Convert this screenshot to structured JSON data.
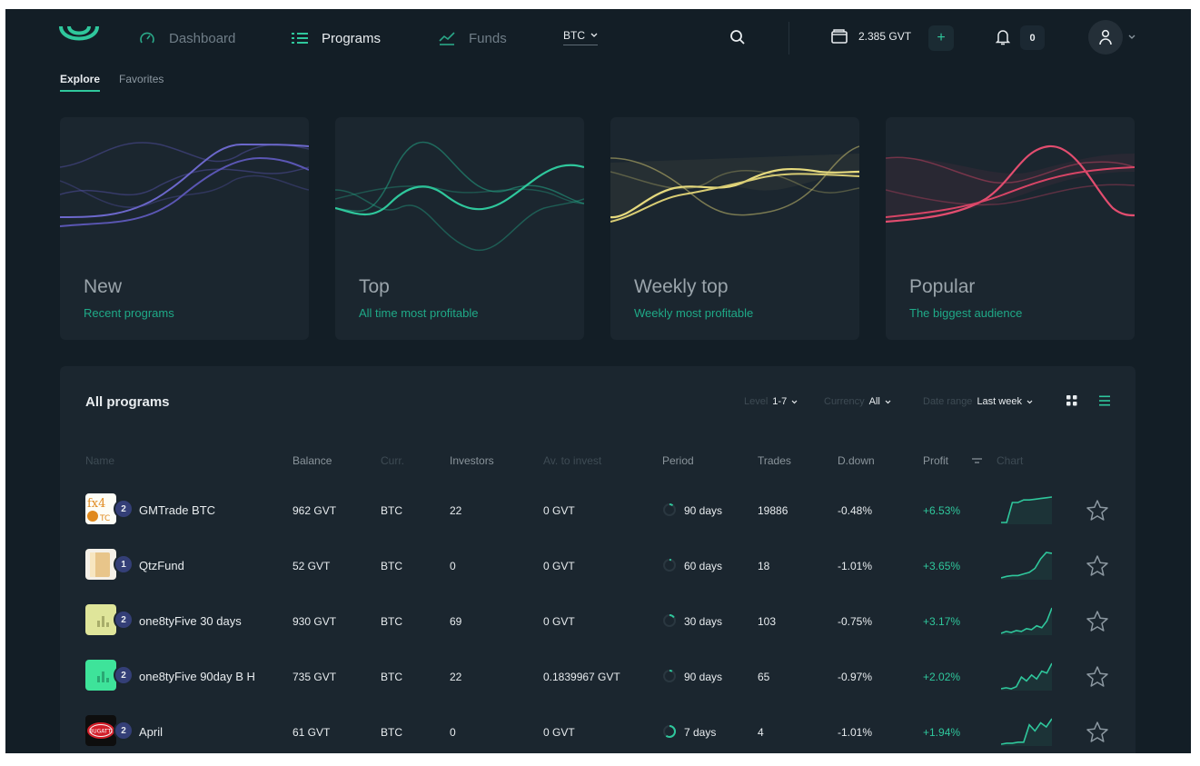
{
  "header": {
    "nav": [
      {
        "label": "Dashboard",
        "icon": "gauge-icon"
      },
      {
        "label": "Programs",
        "icon": "list-icon"
      },
      {
        "label": "Funds",
        "icon": "chart-line-icon"
      }
    ],
    "currency_select": "BTC",
    "wallet_balance": "2.385 GVT",
    "add_label": "+",
    "notifications_count": "0"
  },
  "tabs": [
    "Explore",
    "Favorites"
  ],
  "cards": [
    {
      "title": "New",
      "subtitle": "Recent programs",
      "color": "#5a56b3"
    },
    {
      "title": "Top",
      "subtitle": "All time most profitable",
      "color": "#24b08d"
    },
    {
      "title": "Weekly top",
      "subtitle": "Weekly most profitable",
      "color": "#d8cc74"
    },
    {
      "title": "Popular",
      "subtitle": "The biggest audience",
      "color": "#d84566"
    }
  ],
  "programs": {
    "title": "All programs",
    "filters": [
      {
        "label": "Level",
        "value": "1-7"
      },
      {
        "label": "Currency",
        "value": "All"
      },
      {
        "label": "Date range",
        "value": "Last week"
      }
    ],
    "columns": [
      "Name",
      "Balance",
      "Curr.",
      "Investors",
      "Av. to invest",
      "Period",
      "Trades",
      "D.down",
      "Profit",
      "Chart"
    ],
    "rows": [
      {
        "name": "GMTrade BTC",
        "level": "2",
        "balance": "962 GVT",
        "currency": "BTC",
        "investors": "22",
        "available": "0 GVT",
        "period": "90 days",
        "trades": "19886",
        "drawdown": "-0.48%",
        "profit": "+6.53%",
        "period_progress": 0.1,
        "spark": [
          0,
          0,
          55,
          55,
          62,
          62,
          64,
          66,
          68,
          70
        ]
      },
      {
        "name": "QtzFund",
        "level": "1",
        "balance": "52 GVT",
        "currency": "BTC",
        "investors": "0",
        "available": "0 GVT",
        "period": "60 days",
        "trades": "18",
        "drawdown": "-1.01%",
        "profit": "+3.65%",
        "period_progress": 0.05,
        "spark": [
          2,
          4,
          5,
          5,
          7,
          9,
          14,
          26,
          34,
          33
        ]
      },
      {
        "name": "one8tyFive 30 days",
        "level": "2",
        "balance": "930 GVT",
        "currency": "BTC",
        "investors": "69",
        "available": "0 GVT",
        "period": "30 days",
        "trades": "103",
        "drawdown": "-0.75%",
        "profit": "+3.17%",
        "period_progress": 0.15,
        "spark": [
          3,
          5,
          4,
          6,
          5,
          8,
          7,
          11,
          9,
          16,
          30
        ]
      },
      {
        "name": "one8tyFive 90day B H",
        "level": "2",
        "balance": "735 GVT",
        "currency": "BTC",
        "investors": "22",
        "available": "0.1839967 GVT",
        "period": "90 days",
        "trades": "65",
        "drawdown": "-0.97%",
        "profit": "+2.02%",
        "period_progress": 0.08,
        "spark": [
          2,
          3,
          2,
          4,
          14,
          10,
          16,
          12,
          20,
          18,
          28
        ]
      },
      {
        "name": "April",
        "level": "2",
        "balance": "61 GVT",
        "currency": "BTC",
        "investors": "0",
        "available": "0 GVT",
        "period": "7 days",
        "trades": "4",
        "drawdown": "-1.01%",
        "profit": "+1.94%",
        "period_progress": 0.6,
        "spark": [
          1,
          2,
          2,
          3,
          3,
          20,
          14,
          22,
          18,
          26
        ]
      }
    ]
  }
}
